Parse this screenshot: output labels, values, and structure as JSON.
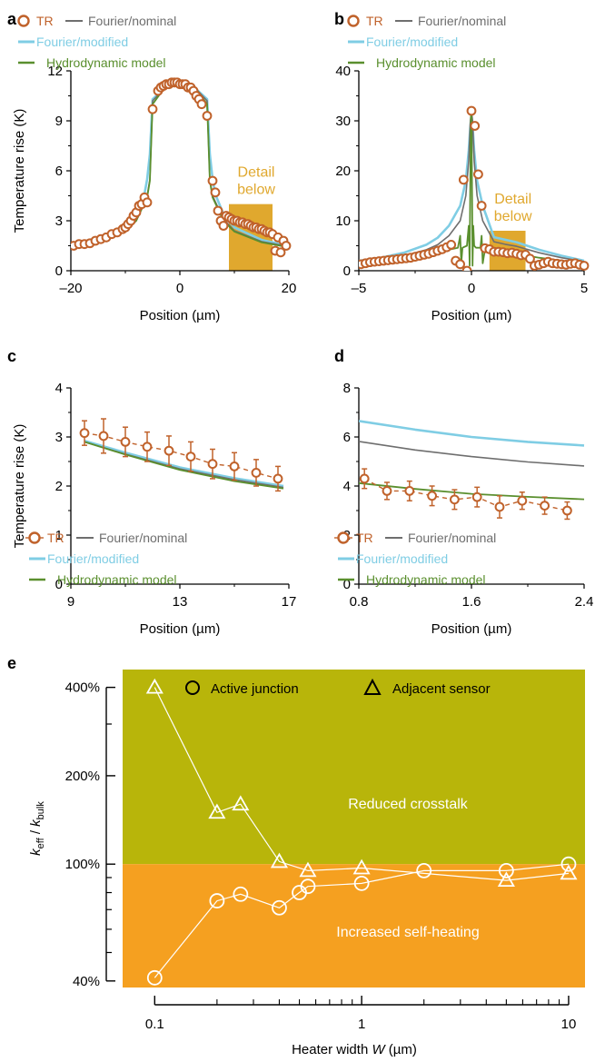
{
  "colors": {
    "tr": "#C0622B",
    "nominal": "#6E6E6E",
    "modified": "#7FCDE4",
    "hydro": "#5A8F2E",
    "detail": "#E0A82E",
    "detail_text": "#E0A82E",
    "crosstalk": "#B8B50A",
    "selfheat": "#F5A020"
  },
  "legend": {
    "tr": "TR",
    "nominal": "Fourier/nominal",
    "modified": "Fourier/modified",
    "hydro": "Hydrodynamic model"
  },
  "detail_label": [
    "Detail",
    "below"
  ],
  "chart_data": [
    {
      "panel": "a",
      "type": "line",
      "xlabel": "Position (µm)",
      "ylabel": "Temperature rise (K)",
      "xlim": [
        -20,
        20
      ],
      "ylim": [
        0,
        12
      ],
      "xticks": [
        "–20",
        "0",
        "20"
      ],
      "yticks": [
        "0",
        "3",
        "6",
        "9",
        "12"
      ],
      "detail_box": {
        "x": [
          9,
          17
        ],
        "y": [
          0,
          4
        ]
      },
      "series": [
        {
          "name": "TR",
          "kind": "markers",
          "x": [
            -19.5,
            -18.5,
            -17.5,
            -16.5,
            -15.5,
            -14.5,
            -13.5,
            -12.5,
            -11.5,
            -10.5,
            -10,
            -9.5,
            -9,
            -8.5,
            -8,
            -7.5,
            -7,
            -6.5,
            -6,
            -5,
            -4,
            -3.5,
            -3,
            -2.5,
            -2,
            -1.5,
            -1,
            -0.5,
            0,
            0.5,
            1,
            1.5,
            2,
            2.5,
            3,
            3.5,
            4,
            5,
            6,
            6.5,
            7,
            7.5,
            8,
            8.5,
            9,
            9.5,
            10,
            10.5,
            11,
            11.5,
            12,
            12.5,
            13,
            13.5,
            14,
            14.5,
            15,
            15.5,
            16,
            16.5,
            17,
            17.5,
            18,
            18.5,
            19,
            19.5
          ],
          "y": [
            1.5,
            1.6,
            1.6,
            1.65,
            1.8,
            1.9,
            2.0,
            2.2,
            2.3,
            2.5,
            2.6,
            2.8,
            3.0,
            3.3,
            3.5,
            3.9,
            4.0,
            4.4,
            4.1,
            9.7,
            10.8,
            11.0,
            11.1,
            11.2,
            11.2,
            11.3,
            11.3,
            11.3,
            11.2,
            11.2,
            11.2,
            11.0,
            11.0,
            10.8,
            10.5,
            10.3,
            10.0,
            9.3,
            5.4,
            4.7,
            3.6,
            3.0,
            2.7,
            3.3,
            3.2,
            3.1,
            3.0,
            3.0,
            2.9,
            2.9,
            2.8,
            2.8,
            2.7,
            2.6,
            2.6,
            2.5,
            2.5,
            2.4,
            2.3,
            2.3,
            2.2,
            1.2,
            2.0,
            1.1,
            1.8,
            1.5
          ]
        },
        {
          "name": "Fourier/nominal",
          "kind": "line",
          "x": [
            -20,
            -15,
            -10,
            -8,
            -6,
            -5.5,
            -5,
            -3,
            -1,
            0,
            1,
            3,
            5,
            5.5,
            6,
            8,
            10,
            15,
            20
          ],
          "y": [
            1.45,
            1.75,
            2.4,
            3.1,
            4.5,
            5.5,
            10.2,
            10.9,
            11.3,
            11.35,
            11.3,
            10.9,
            10.2,
            5.5,
            4.5,
            3.1,
            2.4,
            1.75,
            1.45
          ]
        },
        {
          "name": "Fourier/modified",
          "kind": "line",
          "x": [
            -20,
            -15,
            -10,
            -8,
            -6.5,
            -6,
            -5.5,
            -5,
            -3,
            -1,
            0,
            1,
            3,
            5,
            5.5,
            6,
            6.5,
            8,
            10,
            15,
            20
          ],
          "y": [
            1.5,
            1.85,
            2.6,
            3.4,
            4.6,
            5.5,
            7.0,
            10.3,
            10.9,
            11.2,
            11.25,
            11.2,
            10.9,
            10.3,
            7.0,
            5.5,
            4.6,
            3.4,
            2.6,
            1.85,
            1.5
          ]
        },
        {
          "name": "Hydrodynamic model",
          "kind": "line",
          "x": [
            -20,
            -15,
            -10,
            -8,
            -6,
            -5.5,
            -5,
            -3,
            -1,
            0,
            1,
            3,
            5,
            5.5,
            6,
            8,
            10,
            15,
            20
          ],
          "y": [
            1.4,
            1.7,
            2.35,
            3.0,
            4.4,
            5.4,
            10.0,
            10.9,
            11.3,
            11.4,
            11.3,
            10.9,
            10.0,
            5.4,
            4.4,
            3.0,
            2.35,
            1.7,
            1.4
          ]
        }
      ]
    },
    {
      "panel": "b",
      "type": "line",
      "xlabel": "Position (µm)",
      "ylabel": "",
      "xlim": [
        -5,
        5
      ],
      "ylim": [
        0,
        40
      ],
      "xticks": [
        "–5",
        "0",
        "5"
      ],
      "yticks": [
        "0",
        "10",
        "20",
        "30",
        "40"
      ],
      "detail_box": {
        "x": [
          0.8,
          2.4
        ],
        "y": [
          0,
          8
        ]
      },
      "series": [
        {
          "name": "TR",
          "kind": "markers",
          "x": [
            -4.9,
            -4.7,
            -4.5,
            -4.3,
            -4.1,
            -3.9,
            -3.7,
            -3.5,
            -3.3,
            -3.1,
            -2.9,
            -2.7,
            -2.5,
            -2.3,
            -2.1,
            -1.9,
            -1.7,
            -1.5,
            -1.3,
            -1.1,
            -0.9,
            -0.7,
            -0.5,
            -0.35,
            -0.2,
            0,
            0.15,
            0.3,
            0.45,
            0.6,
            0.8,
            1.0,
            1.2,
            1.4,
            1.6,
            1.8,
            2.0,
            2.2,
            2.4,
            2.6,
            2.8,
            3.0,
            3.2,
            3.4,
            3.6,
            3.8,
            4.0,
            4.2,
            4.4,
            4.6,
            4.8,
            5.0
          ],
          "y": [
            1.3,
            1.5,
            1.7,
            1.8,
            1.9,
            2.0,
            2.1,
            2.2,
            2.3,
            2.4,
            2.5,
            2.6,
            2.8,
            3.0,
            3.2,
            3.4,
            3.7,
            4.0,
            4.3,
            4.7,
            5.2,
            2.0,
            1.3,
            18.2,
            0,
            32.0,
            29.0,
            19.3,
            13.0,
            4.5,
            4.3,
            3.8,
            3.8,
            3.7,
            3.5,
            3.6,
            3.4,
            3.1,
            3.2,
            2.4,
            1.0,
            1.2,
            1.5,
            1.8,
            1.5,
            1.4,
            1.3,
            1.2,
            1.4,
            1.5,
            1.2,
            1.0
          ]
        },
        {
          "name": "Fourier/nominal",
          "kind": "line",
          "x": [
            -5,
            -4,
            -3,
            -2,
            -1.5,
            -1,
            -0.5,
            -0.25,
            -0.12,
            -0.05,
            0,
            0.05,
            0.12,
            0.25,
            0.5,
            1,
            1.5,
            2,
            3,
            4,
            5
          ],
          "y": [
            1.8,
            2.3,
            3.0,
            4.2,
            5.2,
            7.0,
            10.0,
            15.0,
            22.0,
            30.0,
            32.0,
            30.0,
            22.0,
            15.0,
            10.0,
            5.8,
            5.3,
            4.9,
            3.6,
            2.6,
            1.8
          ]
        },
        {
          "name": "Fourier/modified",
          "kind": "line",
          "x": [
            -5,
            -4,
            -3,
            -2,
            -1.5,
            -1,
            -0.5,
            -0.25,
            -0.12,
            -0.05,
            0,
            0.05,
            0.12,
            0.25,
            0.5,
            1,
            1.5,
            2,
            3,
            4,
            5
          ],
          "y": [
            2.0,
            2.6,
            3.6,
            5.2,
            6.6,
            9.0,
            13.0,
            18.0,
            24.0,
            29.0,
            30.5,
            29.0,
            24.0,
            18.0,
            13.0,
            6.7,
            6.2,
            5.7,
            4.2,
            3.0,
            2.0
          ]
        },
        {
          "name": "Hydrodynamic model",
          "kind": "line",
          "x": [
            -5,
            -4,
            -3,
            -2,
            -1.5,
            -1,
            -0.6,
            -0.5,
            -0.45,
            -0.4,
            -0.2,
            -0.12,
            -0.08,
            -0.05,
            -0.02,
            0,
            0.02,
            0.05,
            0.08,
            0.12,
            0.2,
            0.4,
            0.45,
            0.5,
            0.6,
            0.8,
            1,
            1.5,
            2,
            3,
            4,
            5
          ],
          "y": [
            1.5,
            1.9,
            2.4,
            3.1,
            3.6,
            4.2,
            4.6,
            7.0,
            1.5,
            4.6,
            5.0,
            9.0,
            1.0,
            20.0,
            32.0,
            31.0,
            20.0,
            1.0,
            9.0,
            5.0,
            4.6,
            4.6,
            7.0,
            1.5,
            4.3,
            4.1,
            3.9,
            3.6,
            3.4,
            2.6,
            2.0,
            1.5
          ]
        }
      ]
    },
    {
      "panel": "c",
      "type": "line",
      "xlabel": "Position (µm)",
      "ylabel": "Temperature rise (K)",
      "xlim": [
        9,
        17
      ],
      "ylim": [
        0,
        4
      ],
      "xticks": [
        "9",
        "13",
        "17"
      ],
      "yticks": [
        "0",
        "1",
        "2",
        "3",
        "4"
      ],
      "series": [
        {
          "name": "TR",
          "kind": "markers",
          "x": [
            9.5,
            10.2,
            11.0,
            11.8,
            12.6,
            13.4,
            14.2,
            15.0,
            15.8,
            16.6
          ],
          "y": [
            3.08,
            3.02,
            2.9,
            2.8,
            2.72,
            2.6,
            2.45,
            2.4,
            2.27,
            2.15
          ],
          "err": [
            0.25,
            0.35,
            0.3,
            0.3,
            0.3,
            0.3,
            0.3,
            0.28,
            0.27,
            0.25
          ]
        },
        {
          "name": "Fourier/nominal",
          "kind": "line",
          "x": [
            9.5,
            11,
            13,
            15,
            16.8
          ],
          "y": [
            2.9,
            2.65,
            2.35,
            2.13,
            1.97
          ]
        },
        {
          "name": "Fourier/modified",
          "kind": "line",
          "x": [
            9.5,
            11,
            13,
            15,
            16.8
          ],
          "y": [
            2.92,
            2.68,
            2.38,
            2.16,
            2.0
          ]
        },
        {
          "name": "Hydrodynamic model",
          "kind": "line",
          "x": [
            9.5,
            11,
            13,
            15,
            16.8
          ],
          "y": [
            2.9,
            2.64,
            2.33,
            2.1,
            1.95
          ]
        }
      ]
    },
    {
      "panel": "d",
      "type": "line",
      "xlabel": "Position (µm)",
      "ylabel": "",
      "xlim": [
        0.8,
        2.4
      ],
      "ylim": [
        0,
        8
      ],
      "xticks": [
        "0.8",
        "1.6",
        "2.4"
      ],
      "yticks": [
        "0",
        "2",
        "4",
        "6",
        "8"
      ],
      "series": [
        {
          "name": "TR",
          "kind": "markers",
          "x": [
            0.84,
            1.0,
            1.16,
            1.32,
            1.48,
            1.64,
            1.8,
            1.96,
            2.12,
            2.28
          ],
          "y": [
            4.3,
            3.8,
            3.8,
            3.6,
            3.45,
            3.55,
            3.15,
            3.4,
            3.2,
            3.0
          ],
          "err": [
            0.4,
            0.35,
            0.4,
            0.4,
            0.4,
            0.4,
            0.45,
            0.35,
            0.35,
            0.35
          ]
        },
        {
          "name": "Fourier/nominal",
          "kind": "line",
          "x": [
            0.8,
            1.2,
            1.6,
            2.0,
            2.4
          ],
          "y": [
            5.82,
            5.47,
            5.2,
            4.98,
            4.82
          ]
        },
        {
          "name": "Fourier/modified",
          "kind": "line",
          "x": [
            0.8,
            1.2,
            1.6,
            2.0,
            2.4
          ],
          "y": [
            6.65,
            6.3,
            6.0,
            5.8,
            5.65
          ]
        },
        {
          "name": "Hydrodynamic model",
          "kind": "line",
          "x": [
            0.8,
            1.2,
            1.6,
            2.0,
            2.4
          ],
          "y": [
            4.12,
            3.88,
            3.68,
            3.56,
            3.46
          ]
        }
      ]
    },
    {
      "panel": "e",
      "type": "scatter",
      "xlabel_prefix": "Heater width ",
      "xlabel_var": "W",
      "xlabel_suffix": " (µm)",
      "ylabel_main": "k",
      "ylabel_sub1": "eff",
      "ylabel_mid": " / ",
      "ylabel_main2": "k",
      "ylabel_sub2": "bulk",
      "x_scale": "log",
      "y_scale": "log",
      "xlim": [
        0.07,
        12
      ],
      "ylim": [
        0.38,
        4.6
      ],
      "xticks": [
        "0.1",
        "1",
        "10"
      ],
      "yticks": [
        "40%",
        "100%",
        "200%",
        "400%"
      ],
      "region_upper": "Reduced crosstalk",
      "region_lower": "Increased self-heating",
      "series": [
        {
          "name": "Active junction",
          "marker": "circle",
          "x": [
            0.1,
            0.2,
            0.26,
            0.4,
            0.5,
            0.55,
            1.0,
            2.0,
            5.0,
            10.0
          ],
          "y": [
            0.41,
            0.75,
            0.79,
            0.71,
            0.8,
            0.84,
            0.86,
            0.95,
            0.95,
            1.0
          ]
        },
        {
          "name": "Adjacent sensor",
          "marker": "triangle",
          "x": [
            0.1,
            0.2,
            0.26,
            0.4,
            0.55,
            1.0,
            5.0,
            10.0
          ],
          "y": [
            4.0,
            1.5,
            1.6,
            1.02,
            0.95,
            0.97,
            0.88,
            0.93
          ]
        }
      ]
    }
  ]
}
